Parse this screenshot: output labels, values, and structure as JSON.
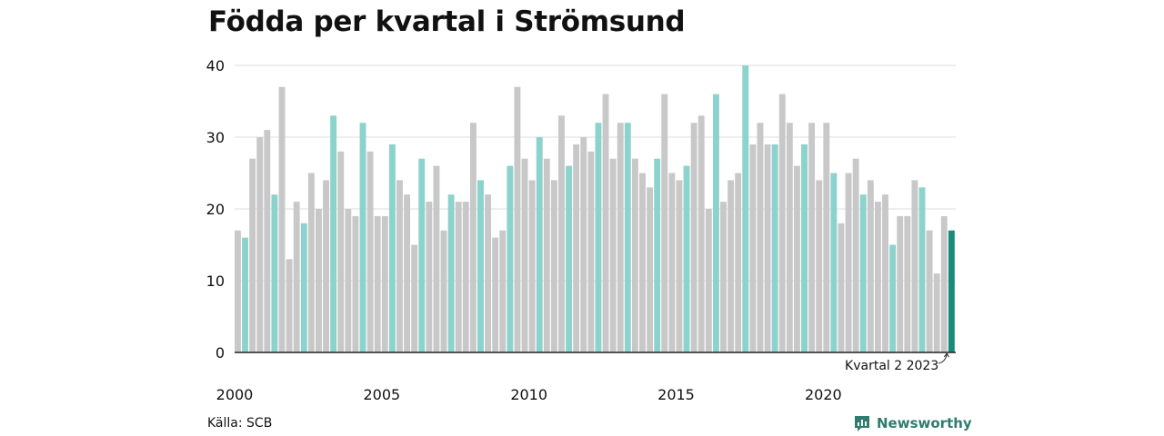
{
  "title": "Födda per kvartal i Strömsund",
  "source": "Källa: SCB",
  "brand": "Newsworthy",
  "annotation": "Kvartal 2 2023",
  "colors": {
    "default_bar": "#c8c8c8",
    "highlight_bar": "#8bd3cc",
    "current_bar": "#1a8a7b",
    "grid": "#dddddd",
    "axis": "#222222",
    "brand": "#2e7d6e"
  },
  "chart_data": {
    "type": "bar",
    "title": "Födda per kvartal i Strömsund",
    "xlabel": "",
    "ylabel": "",
    "ylim": [
      0,
      40
    ],
    "yticks": [
      0,
      10,
      20,
      30,
      40
    ],
    "xtick_labels": [
      "2000",
      "2005",
      "2010",
      "2015",
      "2020"
    ],
    "grid": true,
    "start": {
      "year": 2000,
      "quarter": 1
    },
    "highlight_quarter": 2,
    "values": [
      17,
      16,
      27,
      30,
      31,
      22,
      37,
      13,
      21,
      18,
      25,
      20,
      24,
      33,
      28,
      20,
      19,
      32,
      28,
      19,
      19,
      29,
      24,
      22,
      15,
      27,
      21,
      26,
      17,
      22,
      21,
      21,
      32,
      24,
      22,
      16,
      17,
      26,
      37,
      27,
      24,
      30,
      27,
      24,
      33,
      26,
      29,
      30,
      28,
      32,
      36,
      27,
      32,
      32,
      27,
      25,
      23,
      27,
      36,
      25,
      24,
      26,
      32,
      33,
      20,
      36,
      21,
      24,
      25,
      40,
      29,
      32,
      29,
      29,
      36,
      32,
      26,
      29,
      32,
      24,
      32,
      25,
      18,
      25,
      27,
      22,
      24,
      21,
      22,
      15,
      19,
      19,
      24,
      23,
      17,
      11,
      19,
      17
    ]
  }
}
